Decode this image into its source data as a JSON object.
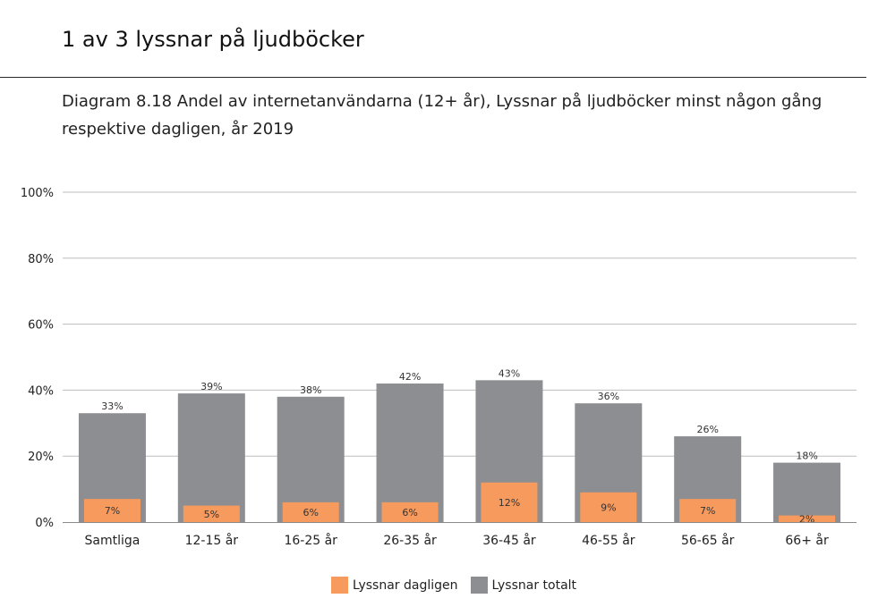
{
  "heading": "1 av 3 lyssnar på ljudböcker",
  "caption": "Diagram 8.18 Andel av internetanvändarna (12+ år), Lyssnar på ljudböcker minst någon gång respektive dagligen, år 2019",
  "colors": {
    "daily": "#f79a5e",
    "total": "#8d8e91",
    "grid": "#bdbdbd",
    "axis": "#8a8a8a"
  },
  "chart_data": {
    "type": "bar",
    "stacking": "overlapped",
    "categories": [
      "Samtliga",
      "12-15 år",
      "16-25 år",
      "26-35 år",
      "36-45 år",
      "46-55 år",
      "56-65 år",
      "66+ år"
    ],
    "series": [
      {
        "name": "Lyssnar totalt",
        "values": [
          33,
          39,
          38,
          42,
          43,
          36,
          26,
          18
        ]
      },
      {
        "name": "Lyssnar dagligen",
        "values": [
          7,
          5,
          6,
          6,
          12,
          9,
          7,
          2
        ]
      }
    ],
    "value_labels": {
      "total": [
        "33%",
        "39%",
        "38%",
        "42%",
        "43%",
        "36%",
        "26%",
        "18%"
      ],
      "daily": [
        "7%",
        "5%",
        "6%",
        "6%",
        "12%",
        "9%",
        "7%",
        "2%"
      ]
    },
    "yticks": [
      "0%",
      "20%",
      "40%",
      "60%",
      "80%",
      "100%"
    ],
    "ylim": [
      0,
      100
    ],
    "grid": true,
    "legend_position": "bottom"
  },
  "legend": {
    "items": [
      {
        "label": "Lyssnar dagligen",
        "color": "#f79a5e"
      },
      {
        "label": "Lyssnar totalt",
        "color": "#8d8e91"
      }
    ]
  }
}
